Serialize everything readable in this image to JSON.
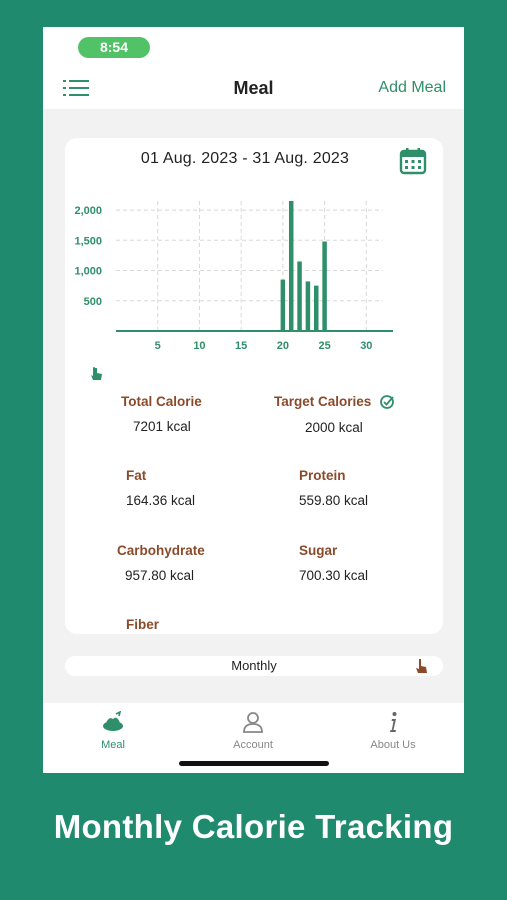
{
  "status_bar": {
    "time": "8:54"
  },
  "nav": {
    "title": "Meal",
    "action_label": "Add Meal"
  },
  "summary": {
    "date_range": "01 Aug. 2023 - 31 Aug. 2023",
    "stats": [
      {
        "label": "Total Calorie",
        "value": "7201 kcal"
      },
      {
        "label": "Target Calories",
        "value": "2000 kcal"
      },
      {
        "label": "Fat",
        "value": "164.36 kcal"
      },
      {
        "label": "Protein",
        "value": "559.80 kcal"
      },
      {
        "label": "Carbohydrate",
        "value": "957.80 kcal"
      },
      {
        "label": "Sugar",
        "value": "700.30 kcal"
      },
      {
        "label": "Fiber",
        "value": ""
      }
    ]
  },
  "chart_data": {
    "type": "bar",
    "x": [
      20,
      21,
      22,
      23,
      24,
      25
    ],
    "values": [
      850,
      2150,
      1150,
      820,
      750,
      1480
    ],
    "xticks": [
      "5",
      "10",
      "15",
      "20",
      "25",
      "30"
    ],
    "yticks": [
      "500",
      "1,000",
      "1,500",
      "2,000"
    ],
    "xlim": [
      0,
      32
    ],
    "ylim": [
      0,
      2150
    ],
    "grid": true,
    "bar_color": "#2f8f6a"
  },
  "period_selector": {
    "label": "Monthly"
  },
  "tabs": [
    {
      "label": "Meal",
      "icon": "meal-icon",
      "active": true
    },
    {
      "label": "Account",
      "icon": "account-icon",
      "active": false
    },
    {
      "label": "About Us",
      "icon": "info-icon",
      "active": false
    }
  ],
  "caption": "Monthly Calorie Tracking",
  "colors": {
    "background": "#1f8a6e",
    "accent": "#2f8f6a",
    "label_brown": "#8b4a2a",
    "pill_green": "#52c266"
  }
}
